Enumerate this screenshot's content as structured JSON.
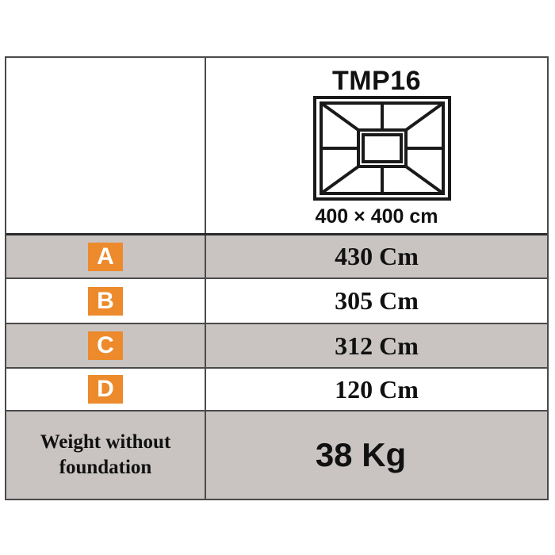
{
  "header": {
    "model": "TMP16",
    "size": "400 × 400 cm",
    "diagram_icon": "frame-top-view-icon"
  },
  "dimensions": [
    {
      "letter": "A",
      "value": "430 Cm"
    },
    {
      "letter": "B",
      "value": "305 Cm"
    },
    {
      "letter": "C",
      "value": "312 Cm"
    },
    {
      "letter": "D",
      "value": "120 Cm"
    }
  ],
  "weight": {
    "label_line1": "Weight without",
    "label_line2": "foundation",
    "value": "38 Kg"
  },
  "colors": {
    "badge": "#ec8a2c",
    "shaded_row": "#c9c4c2",
    "border": "#4a4a4a"
  }
}
